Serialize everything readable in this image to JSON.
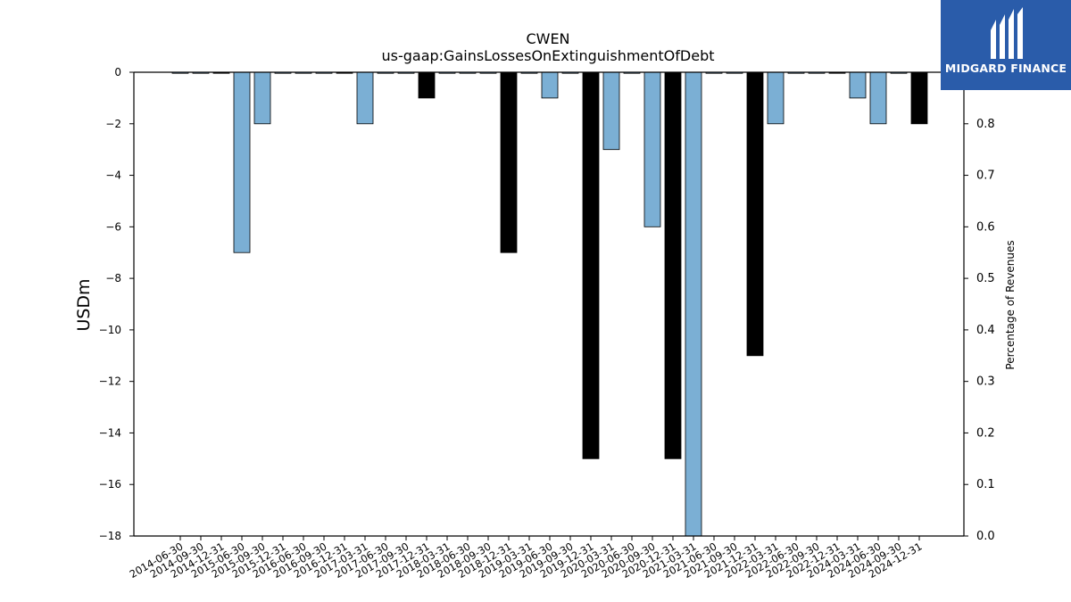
{
  "brand": {
    "name": "MIDGARD FINANCE",
    "color": "#2a5caa"
  },
  "chart_data": {
    "type": "bar",
    "title": "CWEN",
    "subtitle": "us-gaap:GainsLossesOnExtinguishmentOfDebt",
    "ylabel": "USDm",
    "y2label": "Percentage of Revenues",
    "ylim": [
      -18,
      0
    ],
    "y2lim": [
      0.0,
      0.9
    ],
    "yticks": [
      "0",
      "−2",
      "−4",
      "−6",
      "−8",
      "−10",
      "−12",
      "−14",
      "−16",
      "−18"
    ],
    "y2ticks": [
      "0.0",
      "0.1",
      "0.2",
      "0.3",
      "0.4",
      "0.5",
      "0.6",
      "0.7",
      "0.8"
    ],
    "categories": [
      "2014-06-30",
      "2014-09-30",
      "2014-12-31",
      "2015-06-30",
      "2015-09-30",
      "2015-12-31",
      "2016-06-30",
      "2016-09-30",
      "2016-12-31",
      "2017-03-31",
      "2017-06-30",
      "2017-09-30",
      "2017-12-31",
      "2018-03-31",
      "2018-06-30",
      "2018-09-30",
      "2018-12-31",
      "2019-03-31",
      "2019-06-30",
      "2019-09-30",
      "2019-12-31",
      "2020-03-31",
      "2020-06-30",
      "2020-09-30",
      "2020-12-31",
      "2021-03-31",
      "2021-06-30",
      "2021-09-30",
      "2021-12-31",
      "2022-03-31",
      "2022-06-30",
      "2022-09-30",
      "2022-12-31",
      "2024-03-31",
      "2024-06-30",
      "2024-09-30",
      "2024-12-31"
    ],
    "values": [
      0,
      0,
      0,
      -7,
      -2,
      0,
      0,
      0,
      0,
      -2,
      0,
      0,
      -1,
      0,
      0,
      0,
      -7,
      0,
      -1,
      0,
      -15,
      -3,
      0,
      -6,
      -15,
      -18,
      0,
      0,
      -11,
      -2,
      0,
      0,
      0,
      -1,
      -2,
      0,
      -2
    ],
    "bar_colors": [
      "#7bafd4",
      "#7bafd4",
      "#000000",
      "#7bafd4",
      "#7bafd4",
      "#7bafd4",
      "#7bafd4",
      "#7bafd4",
      "#000000",
      "#7bafd4",
      "#7bafd4",
      "#7bafd4",
      "#000000",
      "#7bafd4",
      "#7bafd4",
      "#7bafd4",
      "#000000",
      "#7bafd4",
      "#7bafd4",
      "#7bafd4",
      "#000000",
      "#7bafd4",
      "#7bafd4",
      "#7bafd4",
      "#000000",
      "#7bafd4",
      "#7bafd4",
      "#7bafd4",
      "#000000",
      "#7bafd4",
      "#7bafd4",
      "#7bafd4",
      "#000000",
      "#7bafd4",
      "#7bafd4",
      "#7bafd4",
      "#000000"
    ],
    "colors": {
      "quarter": "#7bafd4",
      "year_end": "#000000"
    },
    "grid": false,
    "legend": "none"
  }
}
